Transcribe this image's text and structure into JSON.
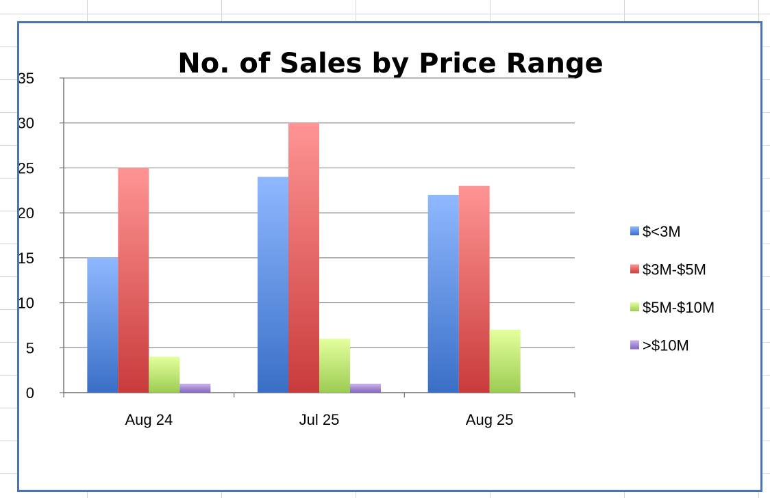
{
  "chart_data": {
    "type": "bar",
    "title": "No. of Sales by Price Range",
    "categories": [
      "Aug 24",
      "Jul 25",
      "Aug 25"
    ],
    "series": [
      {
        "name": "$<3M",
        "values": [
          15,
          24,
          22
        ],
        "color": "#4a86e8",
        "color_light": "#8fb8ff",
        "color_dark": "#3a6fc7"
      },
      {
        "name": "$3M-$5M",
        "values": [
          25,
          30,
          23
        ],
        "color": "#e06060",
        "color_light": "#ff9494",
        "color_dark": "#c93b3b"
      },
      {
        "name": "$5M-$10M",
        "values": [
          4,
          6,
          7
        ],
        "color": "#b6e06a",
        "color_light": "#e4ff9c",
        "color_dark": "#9ccc52"
      },
      {
        "name": ">$10M",
        "values": [
          1,
          1,
          0
        ],
        "color": "#a487d4",
        "color_light": "#c9b3ee",
        "color_dark": "#8466bd"
      }
    ],
    "ylim": [
      0,
      35
    ],
    "yticks": [
      0,
      5,
      10,
      15,
      20,
      25,
      30,
      35
    ],
    "grid": true,
    "legend_position": "right"
  }
}
